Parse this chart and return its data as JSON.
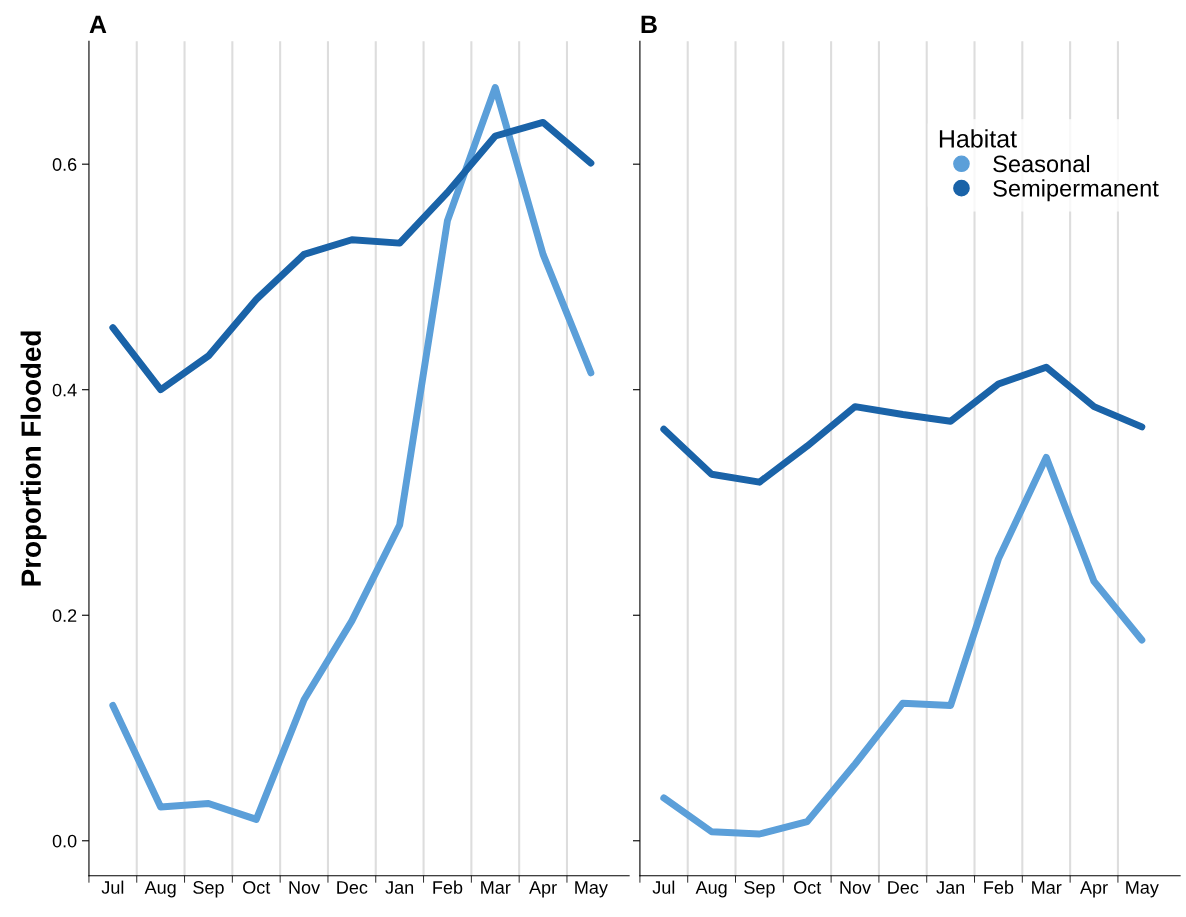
{
  "chart_data": [
    {
      "type": "line",
      "title": "A",
      "ylabel": "Proportion Flooded",
      "ylim": [
        -0.031,
        0.709
      ],
      "categories": [
        "Jul",
        "Aug",
        "Sep",
        "Oct",
        "Nov",
        "Dec",
        "Jan",
        "Feb",
        "Mar",
        "Apr",
        "May"
      ],
      "yticks": [
        {
          "value": 0,
          "label": "0.0"
        },
        0.2,
        0.4,
        0.6
      ],
      "grid": "x",
      "legend": false,
      "marker": "none",
      "line_style": "solid",
      "series": [
        {
          "color": "#5b9fd9",
          "values": [
            0.12,
            0.03,
            0.033,
            0.019,
            0.125,
            0.195,
            0.28,
            0.55,
            0.668,
            0.52,
            0.415
          ]
        },
        {
          "color": "#1a63a8",
          "values": [
            0.455,
            0.4,
            0.43,
            0.48,
            0.52,
            0.533,
            0.53,
            0.575,
            0.625,
            0.637,
            0.601
          ]
        }
      ]
    },
    {
      "type": "line",
      "title": "B",
      "ylim": [
        -0.031,
        0.709
      ],
      "tick_labels": "x",
      "categories": [
        "Jul",
        "Aug",
        "Sep",
        "Oct",
        "Nov",
        "Dec",
        "Jan",
        "Feb",
        "Mar",
        "Apr",
        "May"
      ],
      "yticks": [
        {
          "value": 0,
          "label": null
        },
        {
          "value": 0.2,
          "label": null
        },
        {
          "value": 0.4,
          "label": null
        },
        {
          "value": 0.6,
          "label": null
        }
      ],
      "grid": "x",
      "legend": "top right",
      "legend_title": "Habitat",
      "marker": "none",
      "line_style": "solid",
      "series": [
        {
          "name": "Seasonal",
          "color": "#5b9fd9",
          "values": [
            0.038,
            0.008,
            0.006,
            0.017,
            0.068,
            0.122,
            0.12,
            0.25,
            0.34,
            0.23,
            0.178
          ]
        },
        {
          "name": "Semipermanent",
          "color": "#1a63a8",
          "values": [
            0.365,
            0.325,
            0.318,
            0.35,
            0.385,
            0.378,
            0.372,
            0.405,
            0.42,
            0.385,
            0.367
          ]
        }
      ]
    }
  ]
}
